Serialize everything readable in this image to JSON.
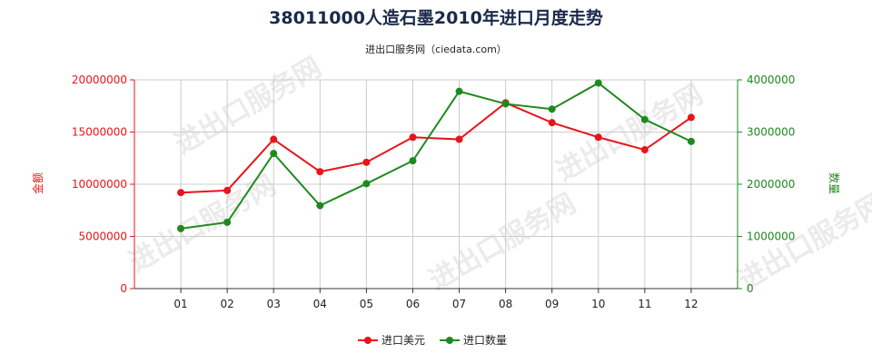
{
  "colors": {
    "left_axis": "#e8141a",
    "right_axis": "#1e8a1e",
    "grid": "#cccccc",
    "series_value": "#e8141a",
    "series_qty": "#1e8a1e"
  },
  "chart_data": {
    "type": "line",
    "title": "38011000人造石墨2010年进口月度走势",
    "subtitle": "进出口服务网（ciedata.com）",
    "watermark": "进出口服务网",
    "categories": [
      "01",
      "02",
      "03",
      "04",
      "05",
      "06",
      "07",
      "08",
      "09",
      "10",
      "11",
      "12"
    ],
    "y_left": {
      "label": "金额",
      "lim": [
        0,
        20000000
      ],
      "ticks": [
        "0",
        "5000000",
        "10000000",
        "15000000",
        "20000000"
      ]
    },
    "y_right": {
      "label": "数量",
      "lim": [
        0,
        4000000
      ],
      "ticks": [
        "0",
        "1000000",
        "2000000",
        "3000000",
        "4000000"
      ]
    },
    "series": [
      {
        "name": "进口美元",
        "axis": "left",
        "values": [
          9200000,
          9400000,
          14300000,
          11200000,
          12100000,
          14500000,
          14300000,
          17800000,
          15900000,
          14500000,
          13300000,
          16400000
        ]
      },
      {
        "name": "进口数量",
        "axis": "right",
        "values": [
          1150000,
          1270000,
          2590000,
          1590000,
          2010000,
          2450000,
          3780000,
          3540000,
          3440000,
          3940000,
          3240000,
          2820000
        ]
      }
    ],
    "grid": true,
    "legend_position": "bottom"
  }
}
